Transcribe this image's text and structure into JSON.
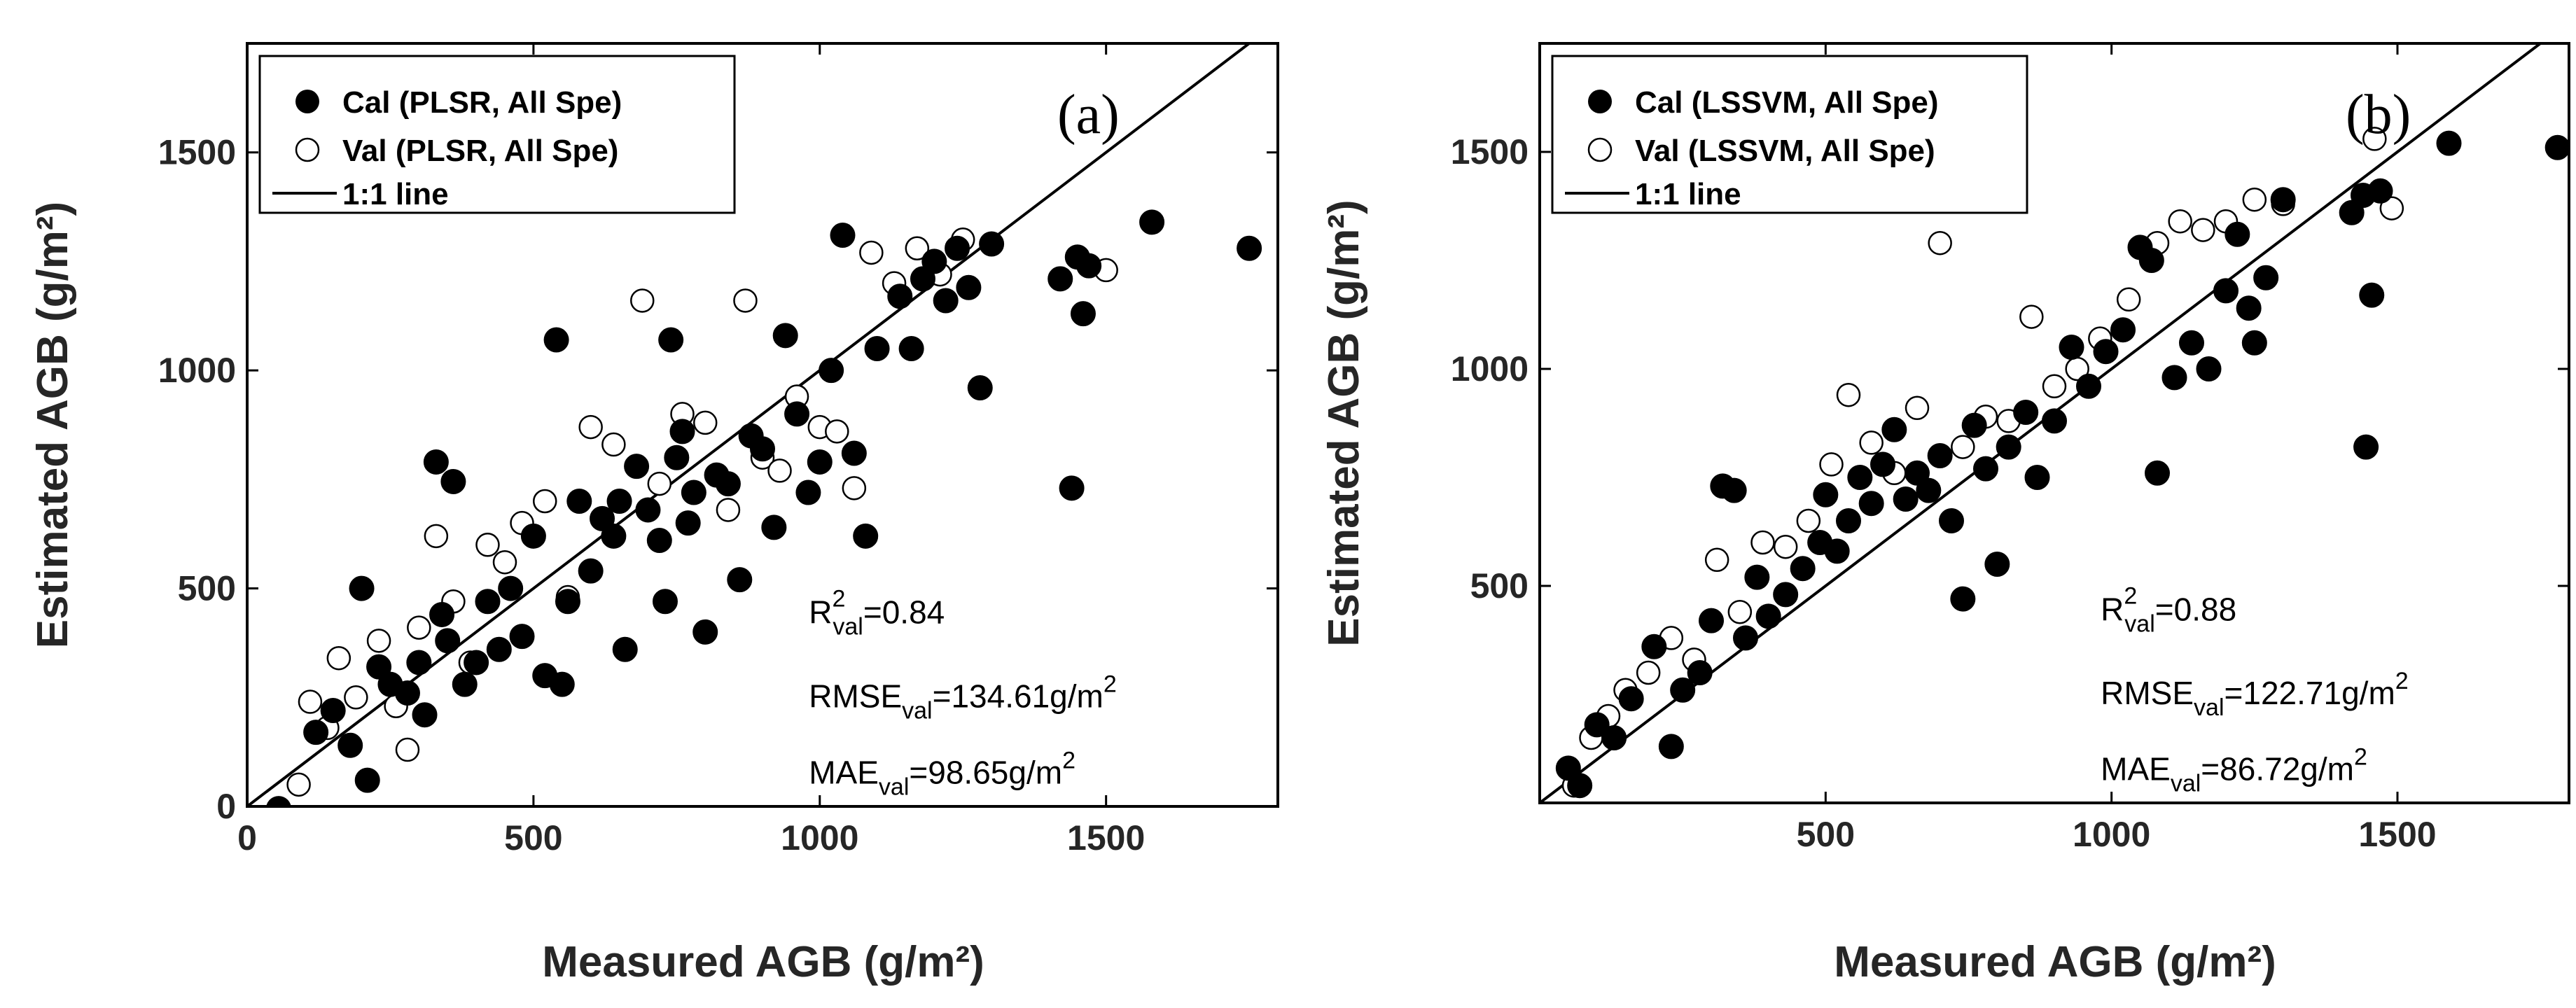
{
  "chart_data": [
    {
      "type": "scatter",
      "panel_label": "(a)",
      "xlabel": "Measured AGB (g/m²)",
      "ylabel": "Estimated AGB (g/m²)",
      "xlim": [
        0,
        1800
      ],
      "ylim": [
        0,
        1750
      ],
      "xticks": [
        0,
        500,
        1000,
        1500
      ],
      "yticks": [
        0,
        500,
        1000,
        1500
      ],
      "legend": [
        "Cal (PLSR, All Spe)",
        "Val (PLSR, All Spe)",
        "1:1 line"
      ],
      "stats": {
        "r2": "0.84",
        "rmse": "134.61g/m",
        "mae": "98.65g/m"
      },
      "series": [
        {
          "name": "Cal (PLSR, All Spe)",
          "marker": "filled",
          "points": [
            [
              55,
              -5
            ],
            [
              120,
              170
            ],
            [
              150,
              220
            ],
            [
              180,
              140
            ],
            [
              200,
              500
            ],
            [
              210,
              60
            ],
            [
              230,
              320
            ],
            [
              250,
              280
            ],
            [
              280,
              260
            ],
            [
              300,
              330
            ],
            [
              310,
              210
            ],
            [
              330,
              790
            ],
            [
              340,
              440
            ],
            [
              350,
              380
            ],
            [
              360,
              745
            ],
            [
              380,
              280
            ],
            [
              400,
              330
            ],
            [
              420,
              470
            ],
            [
              440,
              360
            ],
            [
              460,
              500
            ],
            [
              480,
              390
            ],
            [
              500,
              620
            ],
            [
              520,
              300
            ],
            [
              540,
              1070
            ],
            [
              550,
              280
            ],
            [
              560,
              470
            ],
            [
              580,
              700
            ],
            [
              600,
              540
            ],
            [
              620,
              660
            ],
            [
              640,
              620
            ],
            [
              650,
              700
            ],
            [
              660,
              360
            ],
            [
              680,
              780
            ],
            [
              700,
              680
            ],
            [
              720,
              610
            ],
            [
              730,
              470
            ],
            [
              740,
              1070
            ],
            [
              750,
              800
            ],
            [
              760,
              860
            ],
            [
              770,
              650
            ],
            [
              780,
              720
            ],
            [
              800,
              400
            ],
            [
              820,
              760
            ],
            [
              840,
              740
            ],
            [
              860,
              520
            ],
            [
              880,
              850
            ],
            [
              900,
              820
            ],
            [
              920,
              640
            ],
            [
              940,
              1080
            ],
            [
              960,
              900
            ],
            [
              980,
              720
            ],
            [
              1000,
              790
            ],
            [
              1020,
              1000
            ],
            [
              1040,
              1310
            ],
            [
              1060,
              810
            ],
            [
              1080,
              620
            ],
            [
              1100,
              1050
            ],
            [
              1140,
              1170
            ],
            [
              1160,
              1050
            ],
            [
              1180,
              1210
            ],
            [
              1200,
              1250
            ],
            [
              1220,
              1160
            ],
            [
              1240,
              1280
            ],
            [
              1260,
              1190
            ],
            [
              1280,
              960
            ],
            [
              1300,
              1290
            ],
            [
              1420,
              1210
            ],
            [
              1440,
              730
            ],
            [
              1450,
              1260
            ],
            [
              1460,
              1130
            ],
            [
              1470,
              1240
            ],
            [
              1580,
              1340
            ],
            [
              1750,
              1280
            ]
          ]
        },
        {
          "name": "Val (PLSR, All Spe)",
          "marker": "open",
          "points": [
            [
              90,
              50
            ],
            [
              110,
              240
            ],
            [
              140,
              180
            ],
            [
              160,
              340
            ],
            [
              190,
              250
            ],
            [
              230,
              380
            ],
            [
              260,
              230
            ],
            [
              280,
              130
            ],
            [
              300,
              410
            ],
            [
              330,
              620
            ],
            [
              360,
              470
            ],
            [
              390,
              330
            ],
            [
              420,
              600
            ],
            [
              450,
              560
            ],
            [
              480,
              650
            ],
            [
              520,
              700
            ],
            [
              560,
              480
            ],
            [
              600,
              870
            ],
            [
              640,
              830
            ],
            [
              690,
              1160
            ],
            [
              720,
              740
            ],
            [
              760,
              900
            ],
            [
              800,
              880
            ],
            [
              840,
              680
            ],
            [
              870,
              1160
            ],
            [
              900,
              800
            ],
            [
              930,
              770
            ],
            [
              960,
              940
            ],
            [
              1000,
              870
            ],
            [
              1030,
              860
            ],
            [
              1060,
              730
            ],
            [
              1090,
              1270
            ],
            [
              1130,
              1200
            ],
            [
              1170,
              1280
            ],
            [
              1210,
              1220
            ],
            [
              1250,
              1300
            ],
            [
              1500,
              1230
            ]
          ]
        }
      ]
    },
    {
      "type": "scatter",
      "panel_label": "(b)",
      "xlabel": "Measured AGB (g/m²)",
      "ylabel": "Estimated AGB (g/m²)",
      "xlim": [
        0,
        1800
      ],
      "ylim": [
        0,
        1750
      ],
      "xticks": [
        500,
        1000,
        1500
      ],
      "yticks": [
        500,
        1000,
        1500
      ],
      "legend": [
        "Cal (LSSVM, All Spe)",
        "Val (LSSVM, All Spe)",
        "1:1 line"
      ],
      "stats": {
        "r2": "0.88",
        "rmse": "122.71g/m",
        "mae": "86.72g/m"
      },
      "series": [
        {
          "name": "Cal (LSSVM, All Spe)",
          "marker": "filled",
          "points": [
            [
              50,
              80
            ],
            [
              70,
              40
            ],
            [
              100,
              180
            ],
            [
              130,
              150
            ],
            [
              160,
              240
            ],
            [
              200,
              360
            ],
            [
              230,
              130
            ],
            [
              250,
              260
            ],
            [
              280,
              300
            ],
            [
              300,
              420
            ],
            [
              320,
              730
            ],
            [
              340,
              720
            ],
            [
              360,
              380
            ],
            [
              380,
              520
            ],
            [
              400,
              430
            ],
            [
              430,
              480
            ],
            [
              460,
              540
            ],
            [
              490,
              600
            ],
            [
              500,
              710
            ],
            [
              520,
              580
            ],
            [
              540,
              650
            ],
            [
              560,
              750
            ],
            [
              580,
              690
            ],
            [
              600,
              780
            ],
            [
              620,
              860
            ],
            [
              640,
              700
            ],
            [
              660,
              760
            ],
            [
              680,
              720
            ],
            [
              700,
              800
            ],
            [
              720,
              650
            ],
            [
              740,
              470
            ],
            [
              760,
              870
            ],
            [
              780,
              770
            ],
            [
              800,
              550
            ],
            [
              820,
              820
            ],
            [
              850,
              900
            ],
            [
              870,
              750
            ],
            [
              900,
              880
            ],
            [
              930,
              1050
            ],
            [
              960,
              960
            ],
            [
              990,
              1040
            ],
            [
              1020,
              1090
            ],
            [
              1050,
              1280
            ],
            [
              1070,
              1250
            ],
            [
              1080,
              760
            ],
            [
              1110,
              980
            ],
            [
              1140,
              1060
            ],
            [
              1170,
              1000
            ],
            [
              1200,
              1180
            ],
            [
              1220,
              1310
            ],
            [
              1240,
              1140
            ],
            [
              1250,
              1060
            ],
            [
              1270,
              1210
            ],
            [
              1300,
              1390
            ],
            [
              1420,
              1360
            ],
            [
              1440,
              1400
            ],
            [
              1445,
              820
            ],
            [
              1455,
              1170
            ],
            [
              1470,
              1410
            ],
            [
              1590,
              1520
            ],
            [
              1780,
              1510
            ]
          ]
        },
        {
          "name": "Val (LSSVM, All Spe)",
          "marker": "open",
          "points": [
            [
              60,
              40
            ],
            [
              90,
              150
            ],
            [
              120,
              200
            ],
            [
              150,
              260
            ],
            [
              190,
              300
            ],
            [
              230,
              380
            ],
            [
              270,
              330
            ],
            [
              310,
              560
            ],
            [
              350,
              440
            ],
            [
              390,
              600
            ],
            [
              430,
              590
            ],
            [
              470,
              650
            ],
            [
              510,
              780
            ],
            [
              540,
              940
            ],
            [
              580,
              830
            ],
            [
              620,
              760
            ],
            [
              660,
              910
            ],
            [
              700,
              1290
            ],
            [
              740,
              820
            ],
            [
              780,
              890
            ],
            [
              820,
              880
            ],
            [
              860,
              1120
            ],
            [
              900,
              960
            ],
            [
              940,
              1000
            ],
            [
              980,
              1070
            ],
            [
              1030,
              1160
            ],
            [
              1080,
              1290
            ],
            [
              1120,
              1340
            ],
            [
              1160,
              1320
            ],
            [
              1200,
              1340
            ],
            [
              1250,
              1390
            ],
            [
              1300,
              1380
            ],
            [
              1460,
              1530
            ],
            [
              1490,
              1370
            ]
          ]
        }
      ]
    }
  ]
}
